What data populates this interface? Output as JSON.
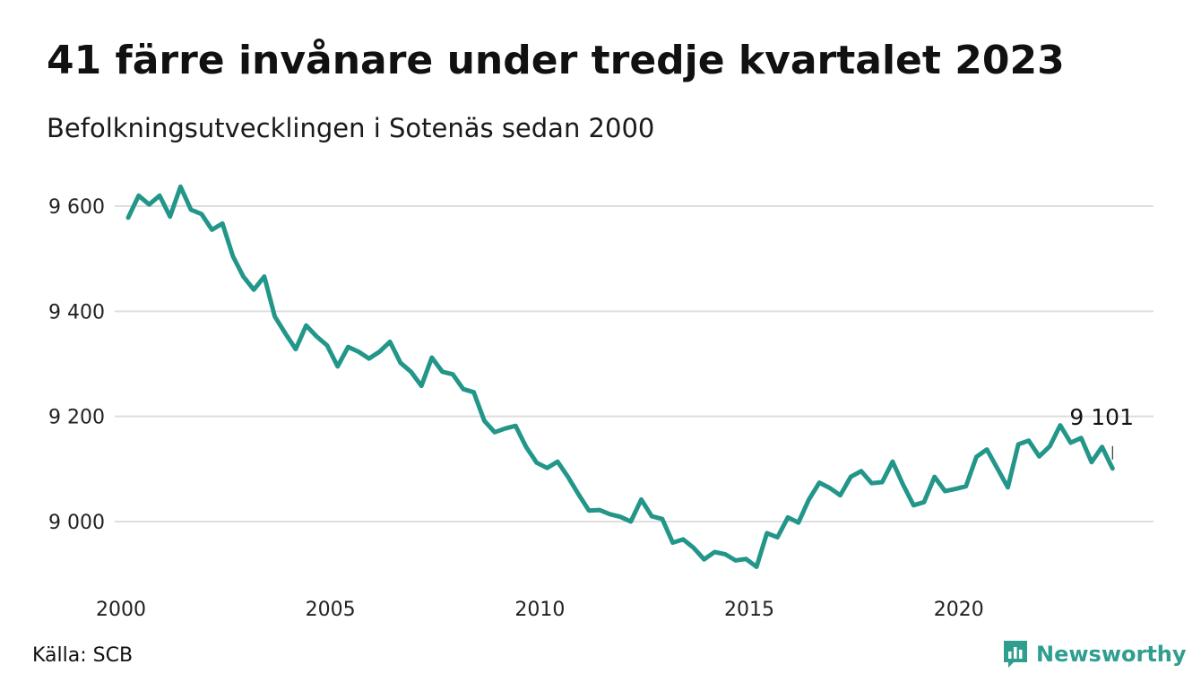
{
  "header": {
    "title": "41 färre invånare under tredje kvartalet 2023",
    "subtitle": "Befolkningsutvecklingen i Sotenäs sedan 2000"
  },
  "footer": {
    "source": "Källa: SCB",
    "brand": "Newsworthy"
  },
  "colors": {
    "line": "#23968a",
    "grid": "#dedede",
    "brand": "#2f9e8f"
  },
  "chart_data": {
    "type": "line",
    "title": "41 färre invånare under tredje kvartalet 2023",
    "subtitle": "Befolkningsutvecklingen i Sotenäs sedan 2000",
    "xlabel": "",
    "ylabel": "",
    "xlim": [
      2000,
      2023.75
    ],
    "ylim": [
      8900,
      9640
    ],
    "y_ticks": [
      9000,
      9200,
      9400,
      9600
    ],
    "y_tick_labels": [
      "9 000",
      "9 200",
      "9 400",
      "9 600"
    ],
    "x_ticks": [
      2000,
      2005,
      2010,
      2015,
      2020
    ],
    "x_tick_labels": [
      "2000",
      "2005",
      "2010",
      "2015",
      "2020"
    ],
    "grid": "horizontal",
    "end_label": "9 101",
    "series": [
      {
        "x_start": 2000.0,
        "x_step": 0.25,
        "values": [
          9578,
          9620,
          9603,
          9620,
          9580,
          9637,
          9593,
          9585,
          9555,
          9567,
          9505,
          9466,
          9441,
          9466,
          9390,
          9358,
          9328,
          9373,
          9352,
          9335,
          9295,
          9332,
          9323,
          9310,
          9323,
          9342,
          9302,
          9285,
          9258,
          9312,
          9285,
          9280,
          9252,
          9246,
          9192,
          9170,
          9177,
          9182,
          9142,
          9112,
          9102,
          9114,
          9085,
          9052,
          9021,
          9022,
          9014,
          9009,
          9000,
          9042,
          9010,
          9005,
          8960,
          8966,
          8950,
          8928,
          8942,
          8938,
          8926,
          8929,
          8914,
          8978,
          8970,
          9008,
          8998,
          9042,
          9074,
          9064,
          9050,
          9085,
          9096,
          9073,
          9075,
          9114,
          9070,
          9031,
          9037,
          9085,
          9058,
          9062,
          9067,
          9123,
          9137,
          9101,
          9065,
          9147,
          9154,
          9124,
          9143,
          9183,
          9150,
          9159,
          9113,
          9142,
          9101
        ]
      }
    ]
  }
}
